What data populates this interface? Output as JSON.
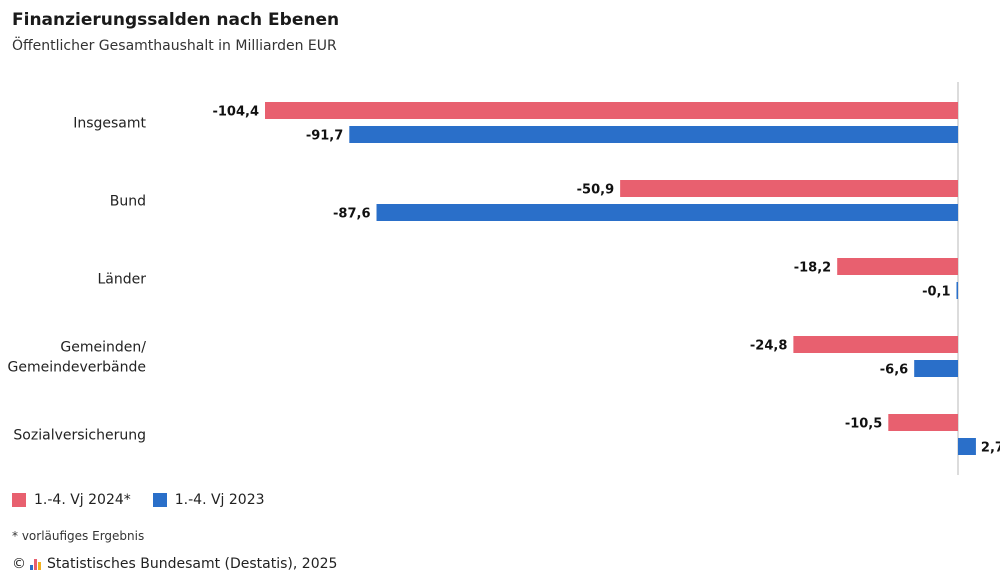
{
  "title": "Finanzierungssalden nach Ebenen",
  "subtitle": "Öffentlicher Gesamthaushalt in Milliarden EUR",
  "legend": [
    {
      "label": "1.-4. Vj 2024*",
      "color": "#e8606f"
    },
    {
      "label": "1.-4. Vj 2023",
      "color": "#2a6fc9"
    }
  ],
  "footnote": "* vorläufiges Ergebnis",
  "source": {
    "copyright": "©",
    "text": "Statistisches Bundesamt (Destatis), 2025",
    "logo_icon": "destatis-logo-icon"
  },
  "chart_data": {
    "type": "bar",
    "orientation": "horizontal",
    "categories": [
      "Insgesamt",
      "Bund",
      "Länder",
      "Gemeinden/\nGemeindeverbände",
      "Sozialversicherung"
    ],
    "series": [
      {
        "name": "1.-4. Vj 2024*",
        "color": "#e8606f",
        "values": [
          -104.4,
          -50.9,
          -18.2,
          -24.8,
          -10.5
        ],
        "labels": [
          "-104,4",
          "-50,9",
          "-18,2",
          "-24,8",
          "-10,5"
        ]
      },
      {
        "name": "1.-4. Vj 2023",
        "color": "#2a6fc9",
        "values": [
          -91.7,
          -87.6,
          -0.1,
          -6.6,
          2.7
        ],
        "labels": [
          "-91,7",
          "-87,6",
          "-0,1",
          "-6,6",
          "2,7"
        ]
      }
    ],
    "xlim": [
      -104.4,
      2.7
    ],
    "grid": false,
    "legend_position": "bottom-left"
  }
}
